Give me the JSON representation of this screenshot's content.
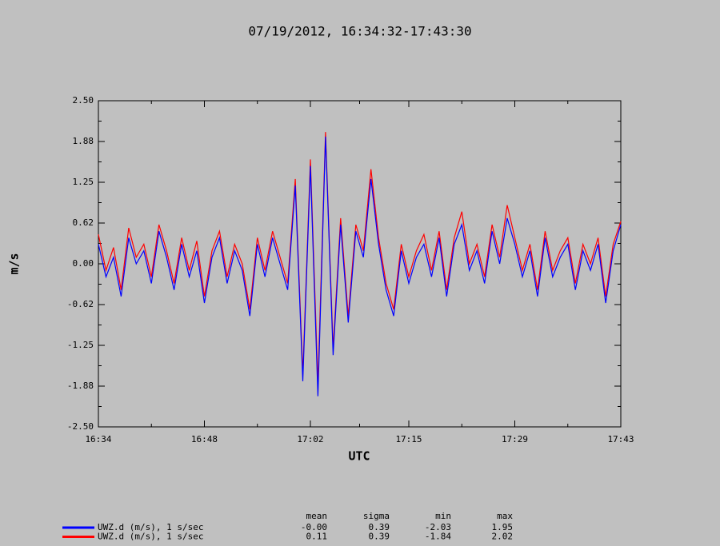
{
  "chart_data": {
    "type": "line",
    "title": "07/19/2012, 16:34:32-17:43:30",
    "xlabel": "UTC",
    "ylabel": "m/s",
    "x": [
      "16:34",
      "16:35",
      "16:36",
      "16:37",
      "16:38",
      "16:39",
      "16:40",
      "16:41",
      "16:42",
      "16:43",
      "16:44",
      "16:45",
      "16:46",
      "16:47",
      "16:48",
      "16:49",
      "16:50",
      "16:51",
      "16:52",
      "16:53",
      "16:54",
      "16:55",
      "16:56",
      "16:57",
      "16:58",
      "16:59",
      "17:00",
      "17:01",
      "17:02",
      "17:03",
      "17:04",
      "17:05",
      "17:06",
      "17:07",
      "17:08",
      "17:09",
      "17:10",
      "17:11",
      "17:12",
      "17:13",
      "17:14",
      "17:15",
      "17:16",
      "17:17",
      "17:18",
      "17:19",
      "17:20",
      "17:21",
      "17:22",
      "17:23",
      "17:24",
      "17:25",
      "17:26",
      "17:27",
      "17:28",
      "17:29",
      "17:30",
      "17:31",
      "17:32",
      "17:33",
      "17:34",
      "17:35",
      "17:36",
      "17:37",
      "17:38",
      "17:39",
      "17:40",
      "17:41",
      "17:42",
      "17:43"
    ],
    "xlim": [
      "16:34",
      "17:43"
    ],
    "xticks": [
      "16:34",
      "16:48",
      "17:02",
      "17:15",
      "17:29",
      "17:43"
    ],
    "ylim": [
      -2.5,
      2.5
    ],
    "yticks": [
      {
        "value": -2.5,
        "label": "-2.50"
      },
      {
        "value": -1.875,
        "label": "-1.88"
      },
      {
        "value": -1.25,
        "label": "-1.25"
      },
      {
        "value": -0.625,
        "label": "-0.62"
      },
      {
        "value": 0,
        "label": "0.00"
      },
      {
        "value": 0.625,
        "label": "0.62"
      },
      {
        "value": 1.25,
        "label": "1.25"
      },
      {
        "value": 1.875,
        "label": "1.88"
      },
      {
        "value": 2.5,
        "label": "2.50"
      }
    ],
    "series": [
      {
        "name": "UWZ.d (m/s), 1 s/sec",
        "color": "#ff0000",
        "values": [
          0.45,
          -0.1,
          0.25,
          -0.4,
          0.55,
          0.1,
          0.3,
          -0.2,
          0.6,
          0.2,
          -0.3,
          0.4,
          -0.1,
          0.35,
          -0.5,
          0.2,
          0.5,
          -0.2,
          0.3,
          0.0,
          -0.7,
          0.4,
          -0.1,
          0.5,
          0.1,
          -0.3,
          1.3,
          -1.7,
          1.6,
          -1.84,
          2.02,
          -1.3,
          0.7,
          -0.8,
          0.6,
          0.2,
          1.45,
          0.4,
          -0.3,
          -0.7,
          0.3,
          -0.2,
          0.2,
          0.45,
          -0.1,
          0.5,
          -0.4,
          0.4,
          0.8,
          0.0,
          0.3,
          -0.2,
          0.6,
          0.1,
          0.9,
          0.4,
          -0.1,
          0.3,
          -0.4,
          0.5,
          -0.1,
          0.2,
          0.4,
          -0.3,
          0.3,
          0.0,
          0.4,
          -0.5,
          0.3,
          0.65
        ]
      },
      {
        "name": "UWZ.d (m/s), 1 s/sec",
        "color": "#0000ff",
        "values": [
          0.3,
          -0.2,
          0.1,
          -0.5,
          0.4,
          0.0,
          0.2,
          -0.3,
          0.5,
          0.1,
          -0.4,
          0.3,
          -0.2,
          0.2,
          -0.6,
          0.1,
          0.4,
          -0.3,
          0.2,
          -0.1,
          -0.8,
          0.3,
          -0.2,
          0.4,
          0.0,
          -0.4,
          1.2,
          -1.8,
          1.5,
          -2.03,
          1.95,
          -1.4,
          0.6,
          -0.9,
          0.5,
          0.1,
          1.3,
          0.3,
          -0.4,
          -0.8,
          0.2,
          -0.3,
          0.1,
          0.3,
          -0.2,
          0.4,
          -0.5,
          0.3,
          0.6,
          -0.1,
          0.2,
          -0.3,
          0.5,
          0.0,
          0.7,
          0.3,
          -0.2,
          0.2,
          -0.5,
          0.4,
          -0.2,
          0.1,
          0.3,
          -0.4,
          0.2,
          -0.1,
          0.3,
          -0.6,
          0.2,
          0.6
        ]
      }
    ],
    "stats": {
      "columns": [
        "mean",
        "sigma",
        "min",
        "max"
      ],
      "rows": [
        [
          "-0.00",
          "0.39",
          "-2.03",
          "1.95"
        ],
        [
          "0.11",
          "0.39",
          "-1.84",
          "2.02"
        ]
      ]
    }
  }
}
